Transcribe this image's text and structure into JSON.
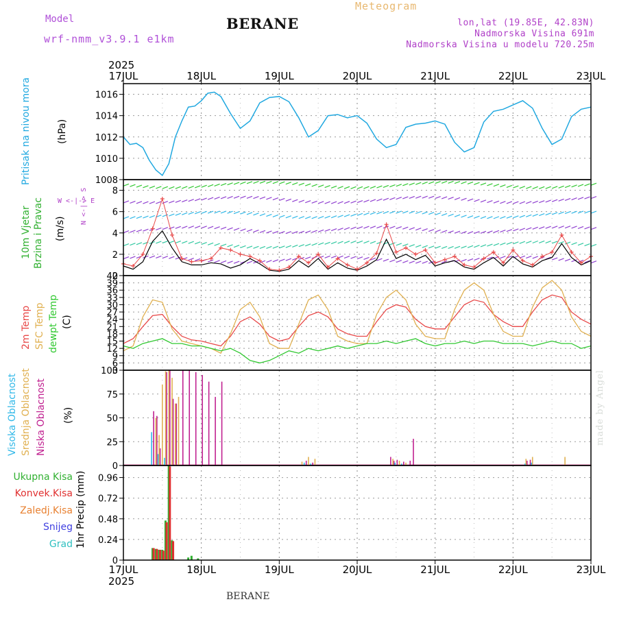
{
  "header": {
    "title": "BERANE",
    "meteogram_label": "Meteogram",
    "model_label": "Model",
    "model_name": "wrf-nmm_v3.9.1 e1km",
    "lonlat": "lon,lat (19.85E, 42.83N)",
    "elevation": "Nadmorska Visina 691m",
    "model_elevation": "Nadmorska Visina u modelu 720.25m"
  },
  "footer": "BERANE",
  "credit": "made by Angel",
  "time_axis": {
    "labels": [
      "17JUL",
      "18JUL",
      "19JUL",
      "20JUL",
      "21JUL",
      "22JUL",
      "23JUL"
    ],
    "year_top": "2025",
    "year_bottom": "2025"
  },
  "panels": {
    "pressure": {
      "labels": [
        "Pritisak na nivou mora",
        "(hPa)"
      ]
    },
    "wind": {
      "labels": [
        "10m Vjetar",
        "Brzina i Pravac",
        "(m/s)"
      ],
      "compass_ns": "N <-|-> S",
      "compass_we": "W <-|-> E"
    },
    "temperature": {
      "labels": [
        "2m Temp",
        "SFC Temp",
        "dewpt Temp",
        "(C)"
      ]
    },
    "cloud": {
      "labels": [
        "Visoka Oblacnost",
        "Srednja Oblacnost",
        "Niska Oblacnost",
        "(%)"
      ]
    },
    "precip": {
      "labels": [
        "Ukupna Kisa",
        "Konvek.Kisa",
        "Zaledj.Kisa",
        "Snijeg",
        "Grad",
        "1hr Precip (mm)"
      ]
    }
  },
  "colors": {
    "pressure": "#20a8e0",
    "temp2m": "#e84848",
    "sfc": "#e0b050",
    "dewpt": "#30c830",
    "wind_speed": "#000000",
    "wind_gust": "#e84848",
    "cloud_high": "#30b8e8",
    "cloud_mid": "#e0b050",
    "cloud_low": "#c02090",
    "rain_total": "#30b030",
    "rain_conv": "#e03030",
    "snow": "#4040e0",
    "hail": "#30c0c0",
    "freezing": "#e88030"
  },
  "chart_data": [
    {
      "type": "line",
      "name": "pressure",
      "ylim": [
        1008,
        1017
      ],
      "yticks": [
        1008,
        1010,
        1012,
        1014,
        1016
      ],
      "xlim": [
        0,
        144
      ],
      "x": [
        0,
        2,
        4,
        6,
        8,
        10,
        12,
        14,
        16,
        18,
        20,
        22,
        24,
        26,
        28,
        30,
        33,
        36,
        39,
        42,
        45,
        48,
        51,
        54,
        57,
        60,
        63,
        66,
        69,
        72,
        75,
        78,
        81,
        84,
        87,
        90,
        93,
        96,
        99,
        102,
        105,
        108,
        111,
        114,
        117,
        120,
        123,
        126,
        129,
        132,
        135,
        138,
        141,
        144
      ],
      "values": [
        1012.0,
        1011.3,
        1011.4,
        1011.0,
        1009.8,
        1008.9,
        1008.4,
        1009.5,
        1012.0,
        1013.5,
        1014.8,
        1014.9,
        1015.4,
        1016.1,
        1016.2,
        1015.8,
        1014.2,
        1012.8,
        1013.5,
        1015.2,
        1015.7,
        1015.8,
        1015.3,
        1013.8,
        1012.0,
        1012.6,
        1014.0,
        1014.1,
        1013.8,
        1014.0,
        1013.3,
        1011.8,
        1011.0,
        1011.3,
        1012.9,
        1013.2,
        1013.3,
        1013.5,
        1013.2,
        1011.5,
        1010.6,
        1011.0,
        1013.4,
        1014.4,
        1014.6,
        1015.0,
        1015.4,
        1014.7,
        1012.8,
        1011.3,
        1011.8,
        1013.9,
        1014.6,
        1014.8
      ]
    },
    {
      "type": "line",
      "name": "wind",
      "ylim": [
        0,
        9
      ],
      "yticks": [
        0,
        2,
        4,
        6,
        8
      ],
      "xlim": [
        0,
        144
      ],
      "series": [
        {
          "key": "speed",
          "x": [
            0,
            3,
            6,
            9,
            12,
            15,
            18,
            21,
            24,
            27,
            30,
            33,
            36,
            39,
            42,
            45,
            48,
            51,
            54,
            57,
            60,
            63,
            66,
            69,
            72,
            75,
            78,
            81,
            84,
            87,
            90,
            93,
            96,
            99,
            102,
            105,
            108,
            111,
            114,
            117,
            120,
            123,
            126,
            129,
            132,
            135,
            138,
            141,
            144
          ],
          "values": [
            0.9,
            0.6,
            1.3,
            3.2,
            4.2,
            2.6,
            1.3,
            1.0,
            1.0,
            1.2,
            1.1,
            0.7,
            1.0,
            1.6,
            1.1,
            0.5,
            0.4,
            0.6,
            1.4,
            0.8,
            1.6,
            0.6,
            1.2,
            0.7,
            0.5,
            0.9,
            1.5,
            3.4,
            1.6,
            2.0,
            1.5,
            1.9,
            0.9,
            1.2,
            1.4,
            0.8,
            0.6,
            1.2,
            1.7,
            0.9,
            1.8,
            1.1,
            0.8,
            1.4,
            1.7,
            3.0,
            1.7,
            1.0,
            1.4
          ]
        },
        {
          "key": "gust",
          "x": [
            0,
            3,
            6,
            9,
            12,
            15,
            18,
            21,
            24,
            27,
            30,
            33,
            36,
            39,
            42,
            45,
            48,
            51,
            54,
            57,
            60,
            63,
            66,
            69,
            72,
            75,
            78,
            81,
            84,
            87,
            90,
            93,
            96,
            99,
            102,
            105,
            108,
            111,
            114,
            117,
            120,
            123,
            126,
            129,
            132,
            135,
            138,
            141,
            144
          ],
          "values": [
            1.1,
            0.9,
            2.0,
            4.4,
            7.2,
            3.8,
            1.6,
            1.3,
            1.4,
            1.6,
            2.6,
            2.4,
            2.0,
            1.8,
            1.4,
            0.6,
            0.5,
            0.8,
            1.8,
            1.2,
            2.0,
            0.8,
            1.6,
            1.0,
            0.6,
            1.2,
            2.1,
            4.8,
            2.2,
            2.6,
            2.0,
            2.4,
            1.2,
            1.5,
            1.8,
            1.0,
            0.8,
            1.6,
            2.2,
            1.2,
            2.4,
            1.4,
            1.0,
            1.8,
            2.2,
            3.8,
            2.2,
            1.2,
            1.8
          ]
        }
      ]
    },
    {
      "type": "line",
      "name": "temperature",
      "ylim": [
        3,
        42
      ],
      "yticks": [
        3,
        6,
        9,
        12,
        15,
        18,
        21,
        24,
        27,
        30,
        33,
        36,
        39,
        42
      ],
      "xlim": [
        0,
        144
      ],
      "series": [
        {
          "key": "temp2m",
          "x": [
            0,
            3,
            6,
            9,
            12,
            15,
            18,
            21,
            24,
            27,
            30,
            33,
            36,
            39,
            42,
            45,
            48,
            51,
            54,
            57,
            60,
            63,
            66,
            69,
            72,
            75,
            78,
            81,
            84,
            87,
            90,
            93,
            96,
            99,
            102,
            105,
            108,
            111,
            114,
            117,
            120,
            123,
            126,
            129,
            132,
            135,
            138,
            141,
            144
          ],
          "values": [
            14,
            16,
            21,
            25.5,
            26,
            21,
            17,
            15.5,
            15,
            14,
            13,
            17,
            23,
            25,
            22,
            17,
            15,
            16,
            21,
            25.5,
            27,
            25,
            20,
            18,
            17,
            17,
            23,
            28,
            30,
            29,
            24,
            21,
            20,
            20,
            25,
            30,
            32,
            31,
            26,
            23,
            21,
            21,
            27,
            32,
            34,
            33,
            27,
            24,
            22
          ]
        },
        {
          "key": "sfc",
          "x": [
            0,
            3,
            6,
            9,
            12,
            15,
            18,
            21,
            24,
            27,
            30,
            33,
            36,
            39,
            42,
            45,
            48,
            51,
            54,
            57,
            60,
            63,
            66,
            69,
            72,
            75,
            78,
            81,
            84,
            87,
            90,
            93,
            96,
            99,
            102,
            105,
            108,
            111,
            114,
            117,
            120,
            123,
            126,
            129,
            132,
            135,
            138,
            141,
            144
          ],
          "values": [
            11,
            13,
            25,
            32,
            31,
            20,
            15,
            14,
            13,
            12,
            10,
            18,
            28,
            31,
            25,
            14,
            12,
            12,
            22,
            32,
            34,
            28,
            17,
            15,
            14,
            14,
            26,
            33,
            36,
            32,
            22,
            17,
            16,
            16,
            28,
            36,
            39,
            36,
            26,
            19,
            17,
            17,
            29,
            37,
            40,
            36,
            25,
            19,
            17
          ]
        },
        {
          "key": "dewpt",
          "x": [
            0,
            3,
            6,
            9,
            12,
            15,
            18,
            21,
            24,
            27,
            30,
            33,
            36,
            39,
            42,
            45,
            48,
            51,
            54,
            57,
            60,
            63,
            66,
            69,
            72,
            75,
            78,
            81,
            84,
            87,
            90,
            93,
            96,
            99,
            102,
            105,
            108,
            111,
            114,
            117,
            120,
            123,
            126,
            129,
            132,
            135,
            138,
            141,
            144
          ],
          "values": [
            13,
            12,
            14,
            15,
            16,
            14,
            14,
            13,
            13,
            12,
            11,
            12,
            10,
            7,
            6,
            7,
            9,
            11,
            10,
            12,
            11,
            12,
            13,
            12,
            13,
            14,
            14,
            15,
            14,
            15,
            16,
            14,
            13,
            14,
            14,
            15,
            14,
            15,
            15,
            14,
            14,
            14,
            13,
            14,
            15,
            14,
            14,
            12,
            13
          ]
        }
      ]
    },
    {
      "type": "bar",
      "name": "cloud",
      "ylim": [
        0,
        100
      ],
      "yticks": [
        0,
        25,
        50,
        75,
        100
      ],
      "xlim": [
        0,
        144
      ],
      "series": [
        {
          "key": "low",
          "x": [
            9,
            10,
            11,
            13,
            14,
            15,
            16,
            18,
            20,
            22,
            24,
            26,
            28,
            30,
            56,
            58,
            82,
            83,
            84,
            86,
            88,
            89,
            124,
            125
          ],
          "values": [
            57,
            52,
            18,
            98,
            100,
            70,
            65,
            100,
            100,
            98,
            95,
            88,
            72,
            88,
            5,
            3,
            9,
            5,
            6,
            4,
            5,
            28,
            5,
            6
          ]
        },
        {
          "key": "mid",
          "x": [
            10,
            11,
            12,
            13,
            14,
            15,
            16,
            17,
            55,
            57,
            59,
            83,
            85,
            87,
            124,
            126,
            136
          ],
          "values": [
            50,
            32,
            85,
            99,
            100,
            92,
            65,
            72,
            4,
            9,
            7,
            7,
            5,
            3,
            7,
            9,
            9
          ]
        },
        {
          "key": "high",
          "x": [
            9,
            11,
            13,
            56,
            58,
            84,
            86,
            124,
            126
          ],
          "values": [
            35,
            12,
            8,
            3,
            2,
            3,
            2,
            2,
            3
          ]
        }
      ]
    },
    {
      "type": "bar",
      "name": "precip",
      "ylim": [
        0,
        1.1
      ],
      "yticks": [
        0,
        0.24,
        0.48,
        0.72,
        0.96
      ],
      "xlim": [
        0,
        144
      ],
      "series": [
        {
          "key": "total",
          "x": [
            9,
            10,
            11,
            12,
            13,
            14,
            15,
            20,
            21,
            23
          ],
          "values": [
            0.14,
            0.13,
            0.12,
            0.12,
            0.46,
            1.1,
            0.23,
            0.03,
            0.05,
            0.02
          ]
        },
        {
          "key": "conv",
          "x": [
            9,
            10,
            11,
            12,
            13,
            14,
            15
          ],
          "values": [
            0.14,
            0.13,
            0.12,
            0.11,
            0.44,
            1.09,
            0.22
          ]
        }
      ]
    }
  ]
}
